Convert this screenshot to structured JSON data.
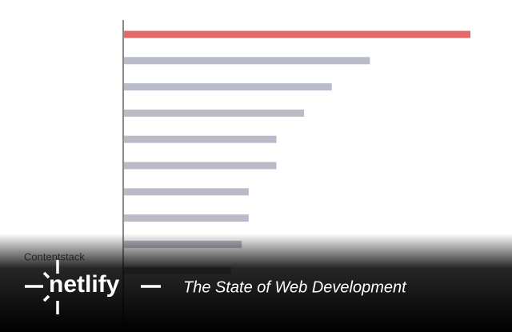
{
  "chart_data": {
    "type": "bar",
    "orientation": "horizontal",
    "categories": [
      null,
      null,
      null,
      null,
      null,
      null,
      null,
      null,
      null,
      "Contentstack"
    ],
    "values": [
      100,
      71,
      60,
      52,
      44,
      44,
      36,
      36,
      34,
      31
    ],
    "colors": [
      "#e46a6a",
      "#b9bcc8",
      "#b9bcc8",
      "#b9bcc8",
      "#b9bcc8",
      "#b9bcc8",
      "#b9bcc8",
      "#b9bcc8",
      "#b9bcc8",
      "#b9bcc8"
    ],
    "xlim": [
      0,
      100
    ]
  },
  "banner": {
    "brand": "netlify",
    "tagline": "The State of Web Development"
  }
}
